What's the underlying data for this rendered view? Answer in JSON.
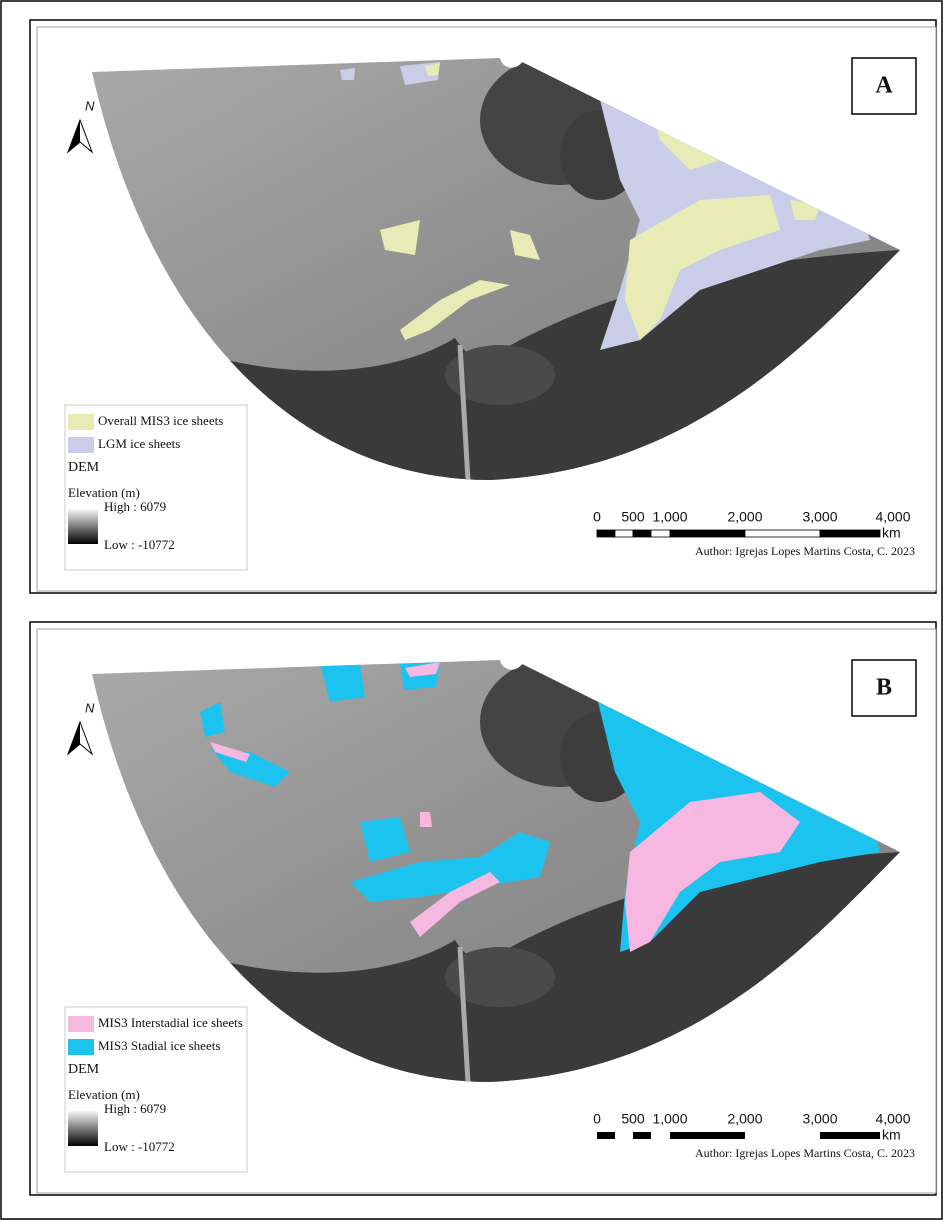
{
  "panels": [
    {
      "label": "A",
      "north": "N",
      "legend": [
        {
          "label": "Overall MIS3 ice sheets",
          "color": "#e8ebb5"
        },
        {
          "label": "LGM ice sheets",
          "color": "#c9cde8"
        }
      ],
      "dem_title": "DEM",
      "elevation_title": "Elevation (m)",
      "high": "High : 6079",
      "low": "Low : -10772",
      "scale_labels": [
        "0",
        "500",
        "1,000",
        "2,000",
        "3,000",
        "4,000"
      ],
      "scale_unit": "km",
      "author": "Author: Igrejas Lopes Martins Costa, C. 2023"
    },
    {
      "label": "B",
      "north": "N",
      "legend": [
        {
          "label": "MIS3 Interstadial ice sheets",
          "color": "#f6b8e0"
        },
        {
          "label": "MIS3 Stadial ice sheets",
          "color": "#1cc3ef"
        }
      ],
      "dem_title": "DEM",
      "elevation_title": "Elevation (m)",
      "high": "High : 6079",
      "low": "Low : -10772",
      "scale_labels": [
        "0",
        "500",
        "1,000",
        "2,000",
        "3,000",
        "4,000"
      ],
      "scale_unit": "km",
      "author": "Author: Igrejas Lopes Martins Costa, C. 2023"
    }
  ]
}
